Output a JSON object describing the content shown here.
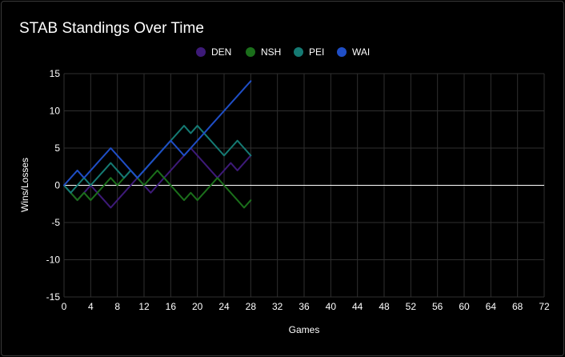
{
  "chart_data": {
    "type": "line",
    "title": "STAB Standings Over Time",
    "xlabel": "Games",
    "ylabel": "Wins/Losses",
    "xlim": [
      0,
      72
    ],
    "ylim": [
      -15,
      15
    ],
    "xticks": [
      0,
      4,
      8,
      12,
      16,
      20,
      24,
      28,
      32,
      36,
      40,
      44,
      48,
      52,
      56,
      60,
      64,
      68,
      72
    ],
    "yticks": [
      -15,
      -10,
      -5,
      0,
      5,
      10,
      15
    ],
    "grid": true,
    "legend_position": "top-center",
    "x": [
      0,
      1,
      2,
      3,
      4,
      5,
      6,
      7,
      8,
      9,
      10,
      11,
      12,
      13,
      14,
      15,
      16,
      17,
      18,
      19,
      20,
      21,
      22,
      23,
      24,
      25,
      26,
      27,
      28
    ],
    "series": [
      {
        "name": "DEN",
        "color": "#3d1a78",
        "values": [
          0,
          -1,
          -2,
          -1,
          0,
          -1,
          -2,
          -3,
          -2,
          -1,
          0,
          1,
          0,
          -1,
          0,
          1,
          2,
          3,
          4,
          5,
          4,
          3,
          2,
          1,
          2,
          3,
          2,
          3,
          4
        ]
      },
      {
        "name": "NSH",
        "color": "#1b6f1b",
        "values": [
          0,
          -1,
          -2,
          -1,
          -2,
          -1,
          0,
          1,
          0,
          1,
          2,
          1,
          0,
          1,
          2,
          1,
          0,
          -1,
          -2,
          -1,
          -2,
          -1,
          0,
          1,
          0,
          -1,
          -2,
          -3,
          -2
        ]
      },
      {
        "name": "PEI",
        "color": "#157a73",
        "values": [
          0,
          -1,
          0,
          1,
          0,
          1,
          2,
          3,
          2,
          1,
          2,
          1,
          2,
          3,
          4,
          5,
          6,
          7,
          8,
          7,
          8,
          7,
          6,
          5,
          4,
          5,
          6,
          5,
          4
        ]
      },
      {
        "name": "WAI",
        "color": "#1f4ec6",
        "values": [
          0,
          1,
          2,
          1,
          2,
          3,
          4,
          5,
          4,
          3,
          2,
          1,
          2,
          3,
          4,
          5,
          6,
          5,
          4,
          5,
          6,
          7,
          8,
          9,
          10,
          11,
          12,
          13,
          14
        ]
      }
    ]
  }
}
